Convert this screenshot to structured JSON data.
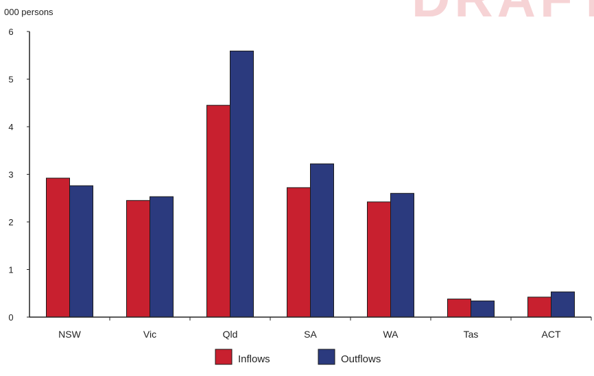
{
  "chart_data": {
    "type": "bar",
    "ylabel": "000 persons",
    "ylim": [
      0,
      6
    ],
    "yticks": [
      0,
      1,
      2,
      3,
      4,
      5,
      6
    ],
    "categories": [
      "NSW",
      "Vic",
      "Qld",
      "SA",
      "WA",
      "Tas",
      "ACT"
    ],
    "series": [
      {
        "name": "Inflows",
        "color": "#c8202f",
        "values": [
          2.92,
          2.45,
          4.45,
          2.72,
          2.42,
          0.38,
          0.42
        ]
      },
      {
        "name": "Outflows",
        "color": "#2b3a7e",
        "values": [
          2.76,
          2.53,
          5.59,
          3.22,
          2.6,
          0.34,
          0.53
        ]
      }
    ],
    "grid": false,
    "legend_position": "bottom"
  }
}
